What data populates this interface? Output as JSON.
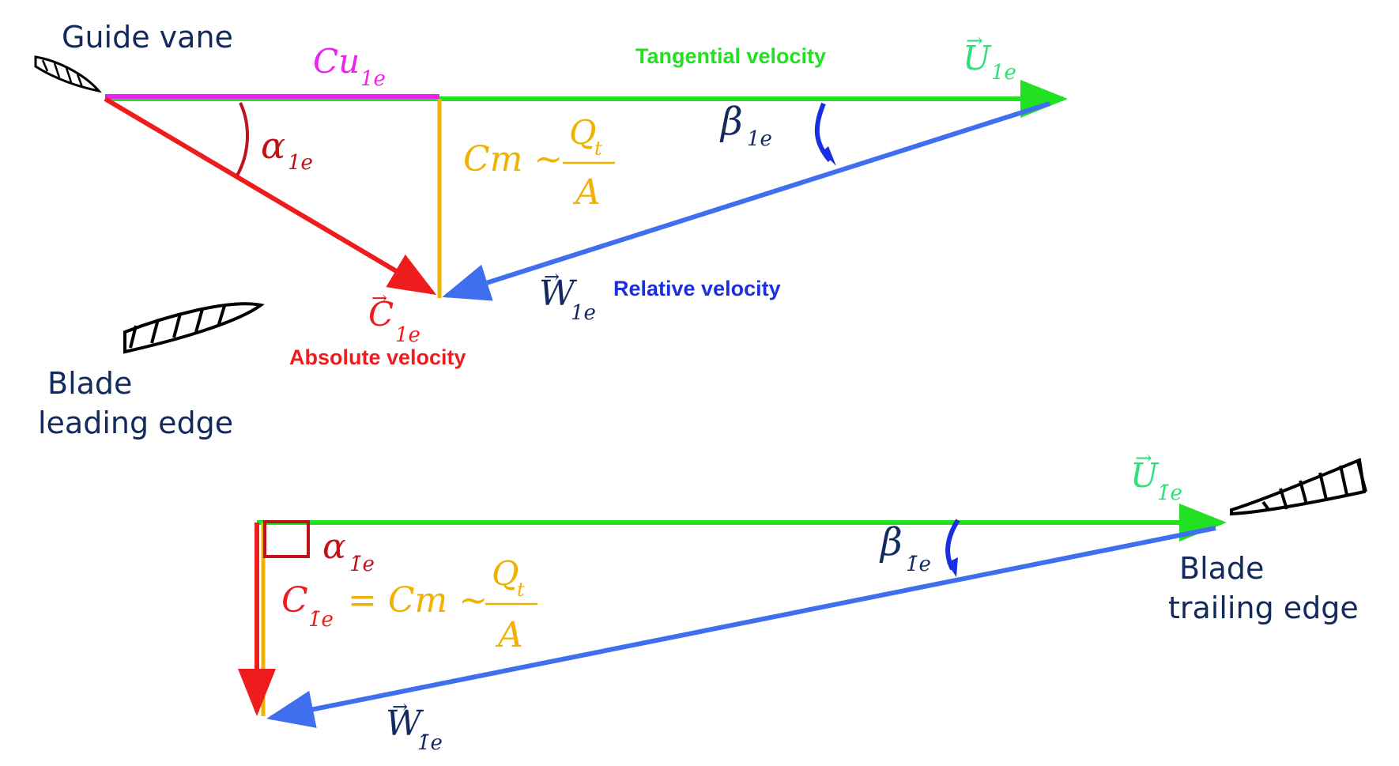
{
  "colors": {
    "tangential": "#22e022",
    "absolute": "#ee1c1c",
    "relative": "#3f6fee",
    "cu": "#ee22ee",
    "meridional": "#f0b100",
    "angle_alpha": "#c0121a",
    "angle_beta": "#1a2fe0",
    "navy": "#132a5e",
    "vector_U_label": "#2ee27a",
    "blade": "#000000"
  },
  "labels": {
    "guide_vane": "Guide vane",
    "blade_leading_1": "Blade",
    "blade_leading_2": "leading edge",
    "blade_trailing_1": "Blade",
    "blade_trailing_2": "trailing edge",
    "tangential_velocity": "Tangential velocity",
    "relative_velocity": "Relative velocity",
    "absolute_velocity": "Absolute velocity"
  },
  "symbols": {
    "cu_main": "Cu",
    "cu_sub": "1e",
    "u_main": "U",
    "u_sub_top": "1e",
    "alpha_main": "α",
    "alpha_sub": "1e",
    "beta_main": "β",
    "beta_sub": "1e",
    "c_main": "C",
    "c_sub": "1e",
    "w_main": "W",
    "w_sub": "1e",
    "cm_text": "Cm ~",
    "frac_num_main": "Q",
    "frac_num_sub": "t",
    "frac_den": "A",
    "u_sub_bottom": "1̄e",
    "alpha2_main": "α",
    "alpha2_sub": "1̄e",
    "beta2_main": "β",
    "beta2_sub": "1̄e",
    "c2_main": "C",
    "c2_sub": "1̄e",
    "eq_text": "= Cm ~",
    "frac2_num_main": "Q",
    "frac2_num_sub": "t",
    "frac2_den": "A",
    "w2_main": "W",
    "w2_sub": "1̄e"
  }
}
